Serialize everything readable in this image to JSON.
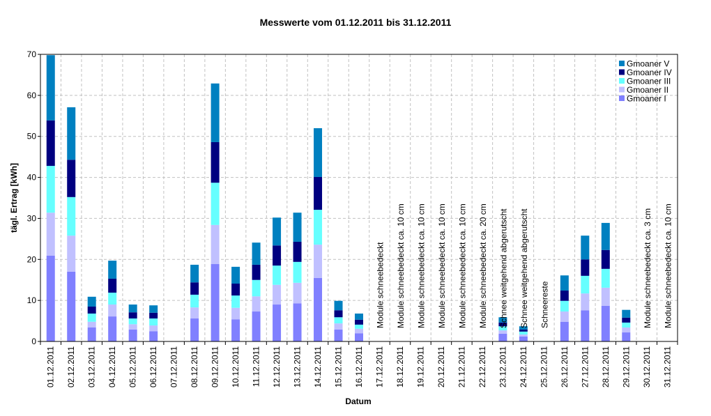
{
  "chart_data": {
    "type": "bar",
    "stacked": true,
    "title": "Messwerte vom 01.12.2011 bis 31.12.2011",
    "xlabel": "Datum",
    "ylabel": "tägl. Ertrag [kWh]",
    "ylim": [
      0,
      70
    ],
    "yticks": [
      0,
      10,
      20,
      30,
      40,
      50,
      60,
      70
    ],
    "grid": true,
    "legend_position": "top-right",
    "categories": [
      "01.12.2011",
      "02.12.2011",
      "03.12.2011",
      "04.12.2011",
      "05.12.2011",
      "06.12.2011",
      "07.12.2011",
      "08.12.2011",
      "09.12.2011",
      "10.12.2011",
      "11.12.2011",
      "12.12.2011",
      "13.12.2011",
      "14.12.2011",
      "15.12.2011",
      "16.12.2011",
      "17.12.2011",
      "18.12.2011",
      "19.12.2011",
      "20.12.2011",
      "21.12.2011",
      "22.12.2011",
      "23.12.2011",
      "24.12.2011",
      "25.12.2011",
      "26.12.2011",
      "27.12.2011",
      "28.12.2011",
      "29.12.2011",
      "30.12.2011",
      "31.12.2011"
    ],
    "series": [
      {
        "name": "Gmoaner I",
        "color": "#8080ff",
        "values": [
          20.9,
          17.0,
          3.4,
          6.1,
          2.9,
          2.5,
          0,
          5.6,
          18.9,
          5.4,
          7.3,
          9.0,
          9.3,
          15.5,
          2.9,
          2.0,
          0,
          0,
          0,
          0,
          0,
          0,
          1.9,
          1.2,
          0,
          4.8,
          7.6,
          8.7,
          2.2,
          0,
          0
        ]
      },
      {
        "name": "Gmoaner II",
        "color": "#c0c0ff",
        "values": [
          10.5,
          8.8,
          1.4,
          2.9,
          1.3,
          1.4,
          0,
          2.7,
          9.5,
          2.8,
          3.7,
          4.8,
          5.0,
          8.1,
          1.5,
          1.1,
          0,
          0,
          0,
          0,
          0,
          0,
          0.8,
          0.5,
          0,
          2.5,
          4.1,
          4.4,
          1.2,
          0,
          0
        ]
      },
      {
        "name": "Gmoaner III",
        "color": "#66ffff",
        "values": [
          11.4,
          9.4,
          2.0,
          2.9,
          1.4,
          1.7,
          0,
          3.1,
          10.3,
          3.0,
          4.0,
          4.7,
          5.1,
          8.5,
          1.5,
          1.0,
          0,
          0,
          0,
          0,
          0,
          0,
          1.0,
          0.7,
          0.1,
          2.6,
          4.3,
          4.6,
          1.2,
          0,
          0
        ]
      },
      {
        "name": "Gmoaner IV",
        "color": "#000080",
        "values": [
          11.1,
          9.1,
          1.7,
          3.4,
          1.5,
          1.4,
          0,
          3.0,
          9.9,
          2.9,
          3.7,
          4.9,
          4.9,
          8.0,
          1.7,
          1.2,
          0,
          0,
          0,
          0,
          0,
          0,
          0.9,
          0.5,
          0,
          2.5,
          4.0,
          4.6,
          1.2,
          0,
          0
        ]
      },
      {
        "name": "Gmoaner V",
        "color": "#0080c0",
        "values": [
          15.9,
          12.8,
          2.4,
          4.4,
          1.9,
          1.8,
          0,
          4.3,
          14.3,
          4.1,
          5.4,
          6.8,
          7.1,
          11.9,
          2.3,
          1.5,
          0,
          0,
          0,
          0,
          0,
          0,
          1.3,
          0.8,
          0,
          3.7,
          5.8,
          6.6,
          1.9,
          0,
          0
        ]
      }
    ],
    "annotations": [
      {
        "category": "17.12.2011",
        "text": "Module schneebedeckt"
      },
      {
        "category": "18.12.2011",
        "text": "Module schneebedeckt ca. 10 cm"
      },
      {
        "category": "19.12.2011",
        "text": "Module schneebedeckt ca. 10 cm"
      },
      {
        "category": "20.12.2011",
        "text": "Module schneebedeckt ca. 10 cm"
      },
      {
        "category": "21.12.2011",
        "text": "Module schneebedeckt ca. 10 cm"
      },
      {
        "category": "22.12.2011",
        "text": "Module schneebedeckt ca. 20 cm"
      },
      {
        "category": "23.12.2011",
        "text": "Schnee weitgehend abgerutscht"
      },
      {
        "category": "24.12.2011",
        "text": "Schnee weitgehend abgerutscht"
      },
      {
        "category": "25.12.2011",
        "text": "Schneereste"
      },
      {
        "category": "30.12.2011",
        "text": "Module schneebedeckt ca. 3 cm"
      },
      {
        "category": "31.12.2011",
        "text": "Module schneebedeckt ca. 10 cm"
      }
    ]
  }
}
